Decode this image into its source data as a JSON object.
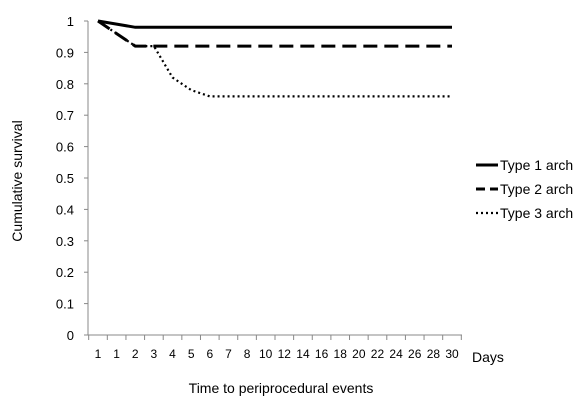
{
  "chart_data": {
    "type": "line",
    "xlabel": "Time to periprocedural events",
    "x_unit_label": "Days",
    "ylabel": "Cumulative survival",
    "x_categories": [
      "1",
      "1",
      "2",
      "3",
      "4",
      "5",
      "6",
      "7",
      "8",
      "10",
      "12",
      "14",
      "16",
      "18",
      "20",
      "22",
      "24",
      "26",
      "28",
      "30"
    ],
    "y_ticks": [
      "0",
      "0.1",
      "0.2",
      "0.3",
      "0.4",
      "0.5",
      "0.6",
      "0.7",
      "0.8",
      "0.9",
      "1"
    ],
    "ylim": [
      0,
      1
    ],
    "legend_position": "right",
    "series": [
      {
        "name": "Type 1 arch",
        "style": "solid",
        "color": "#000000",
        "values": [
          1,
          0.99,
          0.98,
          0.98,
          0.98,
          0.98,
          0.98,
          0.98,
          0.98,
          0.98,
          0.98,
          0.98,
          0.98,
          0.98,
          0.98,
          0.98,
          0.98,
          0.98,
          0.98,
          0.98
        ]
      },
      {
        "name": "Type 2 arch",
        "style": "dashed",
        "color": "#000000",
        "values": [
          1,
          0.96,
          0.92,
          0.92,
          0.92,
          0.92,
          0.92,
          0.92,
          0.92,
          0.92,
          0.92,
          0.92,
          0.92,
          0.92,
          0.92,
          0.92,
          0.92,
          0.92,
          0.92,
          0.92
        ]
      },
      {
        "name": "Type 3 arch",
        "style": "dotted",
        "color": "#000000",
        "values": [
          1,
          0.96,
          0.92,
          0.92,
          0.82,
          0.78,
          0.76,
          0.76,
          0.76,
          0.76,
          0.76,
          0.76,
          0.76,
          0.76,
          0.76,
          0.76,
          0.76,
          0.76,
          0.76,
          0.76
        ]
      }
    ]
  }
}
